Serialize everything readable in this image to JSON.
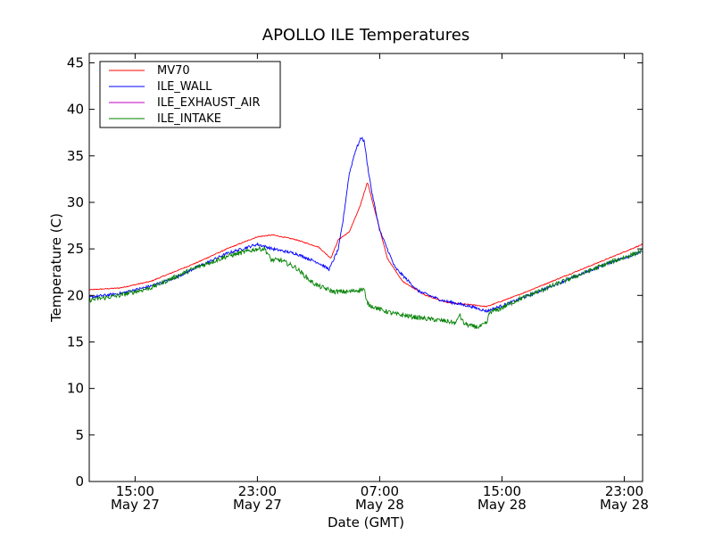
{
  "chart_data": {
    "type": "line",
    "title": "APOLLO ILE Temperatures",
    "xlabel": "Date (GMT)",
    "ylabel": "Temperature (C)",
    "xlim": [
      12.0,
      48.2
    ],
    "ylim": [
      0,
      46
    ],
    "x_unit": "hours since May 27 00:00 GMT",
    "x_ticks": [
      {
        "value": 15,
        "time": "15:00",
        "date": "May 27"
      },
      {
        "value": 23,
        "time": "23:00",
        "date": "May 27"
      },
      {
        "value": 31,
        "time": "07:00",
        "date": "May 28"
      },
      {
        "value": 39,
        "time": "15:00",
        "date": "May 28"
      },
      {
        "value": 47,
        "time": "23:00",
        "date": "May 28"
      }
    ],
    "y_ticks": [
      0,
      5,
      10,
      15,
      20,
      25,
      30,
      35,
      40,
      45
    ],
    "legend_position": "top-left",
    "series": [
      {
        "name": "MV70",
        "color": "#ff0000",
        "x": [
          12.0,
          14.0,
          16.0,
          17.5,
          19.0,
          21.0,
          23.0,
          24.0,
          25.5,
          27.0,
          27.8,
          28.3,
          29.0,
          29.7,
          30.2,
          30.7,
          31.5,
          32.5,
          34.0,
          35.5,
          37.0,
          38.0,
          40.0,
          43.0,
          46.0,
          48.2
        ],
        "values": [
          20.6,
          20.8,
          21.5,
          22.5,
          23.5,
          25.0,
          26.3,
          26.5,
          26.0,
          25.2,
          24.0,
          26.0,
          26.8,
          29.5,
          32.2,
          29.0,
          24.0,
          21.5,
          20.0,
          19.2,
          19.0,
          18.8,
          20.0,
          22.0,
          24.0,
          25.5
        ],
        "noise": 0.05
      },
      {
        "name": "ILE_WALL",
        "color": "#0000ff",
        "x": [
          12.0,
          14.0,
          16.0,
          17.5,
          19.0,
          21.0,
          23.0,
          24.0,
          25.5,
          27.0,
          27.7,
          28.3,
          28.6,
          29.0,
          29.4,
          29.8,
          30.0,
          30.2,
          30.5,
          31.0,
          32.0,
          33.5,
          35.0,
          37.0,
          38.0,
          40.0,
          43.0,
          46.0,
          48.2
        ],
        "values": [
          19.8,
          20.2,
          21.0,
          21.8,
          23.0,
          24.5,
          25.5,
          25.0,
          24.5,
          23.5,
          22.8,
          25.0,
          28.0,
          33.0,
          35.5,
          37.0,
          36.5,
          34.0,
          31.0,
          27.0,
          23.0,
          20.5,
          19.5,
          18.8,
          18.3,
          19.5,
          21.5,
          23.5,
          24.7
        ],
        "noise": 0.15
      },
      {
        "name": "ILE_EXHAUST_AIR",
        "color": "#bf00bf",
        "x": [],
        "values": [],
        "noise": 0
      },
      {
        "name": "ILE_INTAKE",
        "color": "#008000",
        "x": [
          12.0,
          14.0,
          16.0,
          19.0,
          21.0,
          23.0,
          23.5,
          23.9,
          24.5,
          25.5,
          26.5,
          27.0,
          28.0,
          29.0,
          30.0,
          30.1,
          30.3,
          31.0,
          32.0,
          34.0,
          35.5,
          36.0,
          36.2,
          36.5,
          37.0,
          37.5,
          38.0,
          38.2,
          38.8,
          40.0,
          43.0,
          46.0,
          48.2
        ],
        "values": [
          19.5,
          20.0,
          20.8,
          23.0,
          24.2,
          25.0,
          25.0,
          23.8,
          23.8,
          23.0,
          21.5,
          21.0,
          20.4,
          20.4,
          20.7,
          19.5,
          19.0,
          18.5,
          18.0,
          17.5,
          17.2,
          17.0,
          18.0,
          17.0,
          16.7,
          16.6,
          17.0,
          18.2,
          18.5,
          19.5,
          21.5,
          23.5,
          24.8
        ],
        "noise": 0.25
      }
    ]
  }
}
